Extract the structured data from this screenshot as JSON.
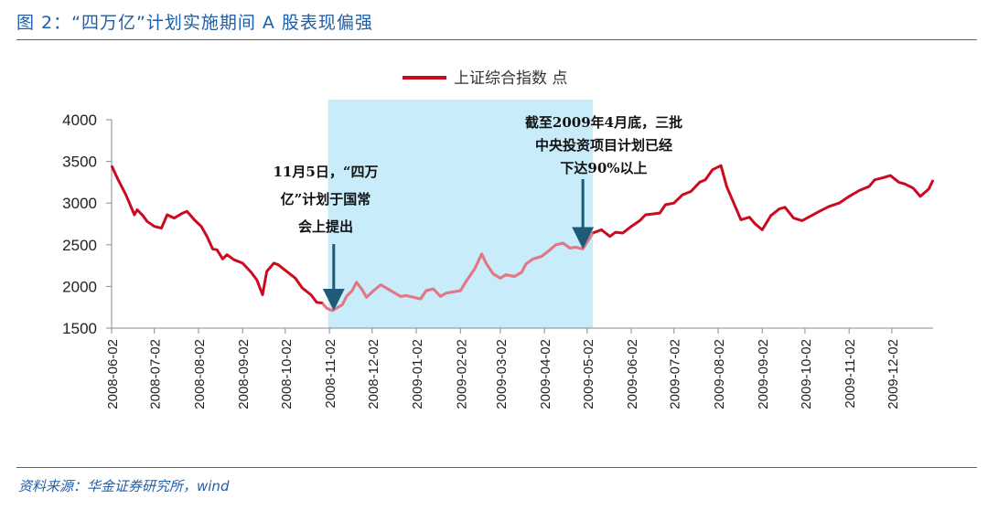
{
  "header": {
    "title": "图 2：“四万亿”计划实施期间 A 股表现偏强"
  },
  "footer": {
    "source": "资料来源：华金证券研究所，wind"
  },
  "colors": {
    "line": "#cc0a1f",
    "highlight": "#c8ecf9",
    "arrow": "#1f5b78",
    "title": "#1f5ea8"
  },
  "chart_data": {
    "type": "line",
    "legend": "上证综合指数 点",
    "legend_position": "top-center",
    "grid": false,
    "ylim": [
      1500,
      4000
    ],
    "yticks": [
      1500,
      2000,
      2500,
      3000,
      3500,
      4000
    ],
    "xlim": [
      "2008-06-02",
      "2009-12-31"
    ],
    "xticks": [
      "2008-06-02",
      "2008-07-02",
      "2008-08-02",
      "2008-09-02",
      "2008-10-02",
      "2008-11-02",
      "2008-12-02",
      "2009-01-02",
      "2009-02-02",
      "2009-03-02",
      "2009-04-02",
      "2009-05-02",
      "2009-06-02",
      "2009-07-02",
      "2009-08-02",
      "2009-09-02",
      "2009-10-02",
      "2009-11-02",
      "2009-12-02"
    ],
    "highlight_range": [
      "2008-11-01",
      "2009-05-06"
    ],
    "series": [
      {
        "name": "上证综合指数",
        "x": [
          "2008-06-02",
          "2008-06-06",
          "2008-06-12",
          "2008-06-18",
          "2008-06-20",
          "2008-06-24",
          "2008-06-27",
          "2008-07-02",
          "2008-07-07",
          "2008-07-11",
          "2008-07-16",
          "2008-07-22",
          "2008-07-25",
          "2008-07-30",
          "2008-08-04",
          "2008-08-08",
          "2008-08-12",
          "2008-08-15",
          "2008-08-19",
          "2008-08-22",
          "2008-08-27",
          "2008-09-02",
          "2008-09-08",
          "2008-09-12",
          "2008-09-16",
          "2008-09-19",
          "2008-09-24",
          "2008-09-27",
          "2008-10-09",
          "2008-10-14",
          "2008-10-20",
          "2008-10-24",
          "2008-10-28",
          "2008-10-31",
          "2008-11-04",
          "2008-11-07",
          "2008-11-11",
          "2008-11-14",
          "2008-11-18",
          "2008-11-21",
          "2008-11-25",
          "2008-11-28",
          "2008-12-03",
          "2008-12-08",
          "2008-12-12",
          "2008-12-17",
          "2008-12-22",
          "2008-12-26",
          "2009-01-05",
          "2009-01-09",
          "2009-01-14",
          "2009-01-19",
          "2009-01-23",
          "2009-02-02",
          "2009-02-06",
          "2009-02-12",
          "2009-02-17",
          "2009-02-20",
          "2009-02-25",
          "2009-03-02",
          "2009-03-06",
          "2009-03-12",
          "2009-03-17",
          "2009-03-20",
          "2009-03-25",
          "2009-03-31",
          "2009-04-06",
          "2009-04-10",
          "2009-04-15",
          "2009-04-20",
          "2009-04-24",
          "2009-04-29",
          "2009-05-06",
          "2009-05-12",
          "2009-05-18",
          "2009-05-22",
          "2009-05-27",
          "2009-06-02",
          "2009-06-08",
          "2009-06-12",
          "2009-06-17",
          "2009-06-22",
          "2009-06-26",
          "2009-07-02",
          "2009-07-08",
          "2009-07-14",
          "2009-07-20",
          "2009-07-24",
          "2009-07-29",
          "2009-08-04",
          "2009-08-08",
          "2009-08-13",
          "2009-08-18",
          "2009-08-24",
          "2009-08-28",
          "2009-09-02",
          "2009-09-08",
          "2009-09-14",
          "2009-09-18",
          "2009-09-24",
          "2009-09-30",
          "2009-10-12",
          "2009-10-19",
          "2009-10-26",
          "2009-11-02",
          "2009-11-09",
          "2009-11-16",
          "2009-11-20",
          "2009-11-25",
          "2009-12-01",
          "2009-12-07",
          "2009-12-11",
          "2009-12-17",
          "2009-12-22",
          "2009-12-28",
          "2009-12-31"
        ],
        "values": [
          3450,
          3300,
          3100,
          2860,
          2920,
          2850,
          2780,
          2720,
          2700,
          2860,
          2820,
          2880,
          2900,
          2800,
          2720,
          2600,
          2450,
          2440,
          2330,
          2380,
          2320,
          2280,
          2170,
          2080,
          1900,
          2180,
          2280,
          2260,
          2100,
          1980,
          1900,
          1810,
          1800,
          1740,
          1710,
          1740,
          1780,
          1880,
          1950,
          2050,
          1960,
          1870,
          1950,
          2020,
          1980,
          1930,
          1880,
          1890,
          1850,
          1950,
          1970,
          1880,
          1920,
          1950,
          2060,
          2210,
          2390,
          2280,
          2150,
          2100,
          2140,
          2120,
          2170,
          2270,
          2330,
          2360,
          2440,
          2500,
          2520,
          2460,
          2470,
          2450,
          2640,
          2680,
          2600,
          2650,
          2640,
          2720,
          2790,
          2860,
          2870,
          2880,
          2980,
          3000,
          3100,
          3140,
          3250,
          3280,
          3400,
          3450,
          3200,
          3000,
          2800,
          2830,
          2750,
          2680,
          2850,
          2930,
          2950,
          2820,
          2790,
          2900,
          2960,
          3000,
          3080,
          3150,
          3200,
          3280,
          3300,
          3330,
          3250,
          3230,
          3180,
          3080,
          3170,
          3277
        ]
      }
    ],
    "annotations": [
      {
        "text": [
          "11月5日，“四万",
          "亿”计划于国常",
          "会上提出"
        ],
        "date": "2008-11-05"
      },
      {
        "text": [
          "截至2009年4月底，三批",
          "中央投资项目计划已经",
          "下达90%以上"
        ],
        "date": "2009-04-29"
      }
    ]
  }
}
